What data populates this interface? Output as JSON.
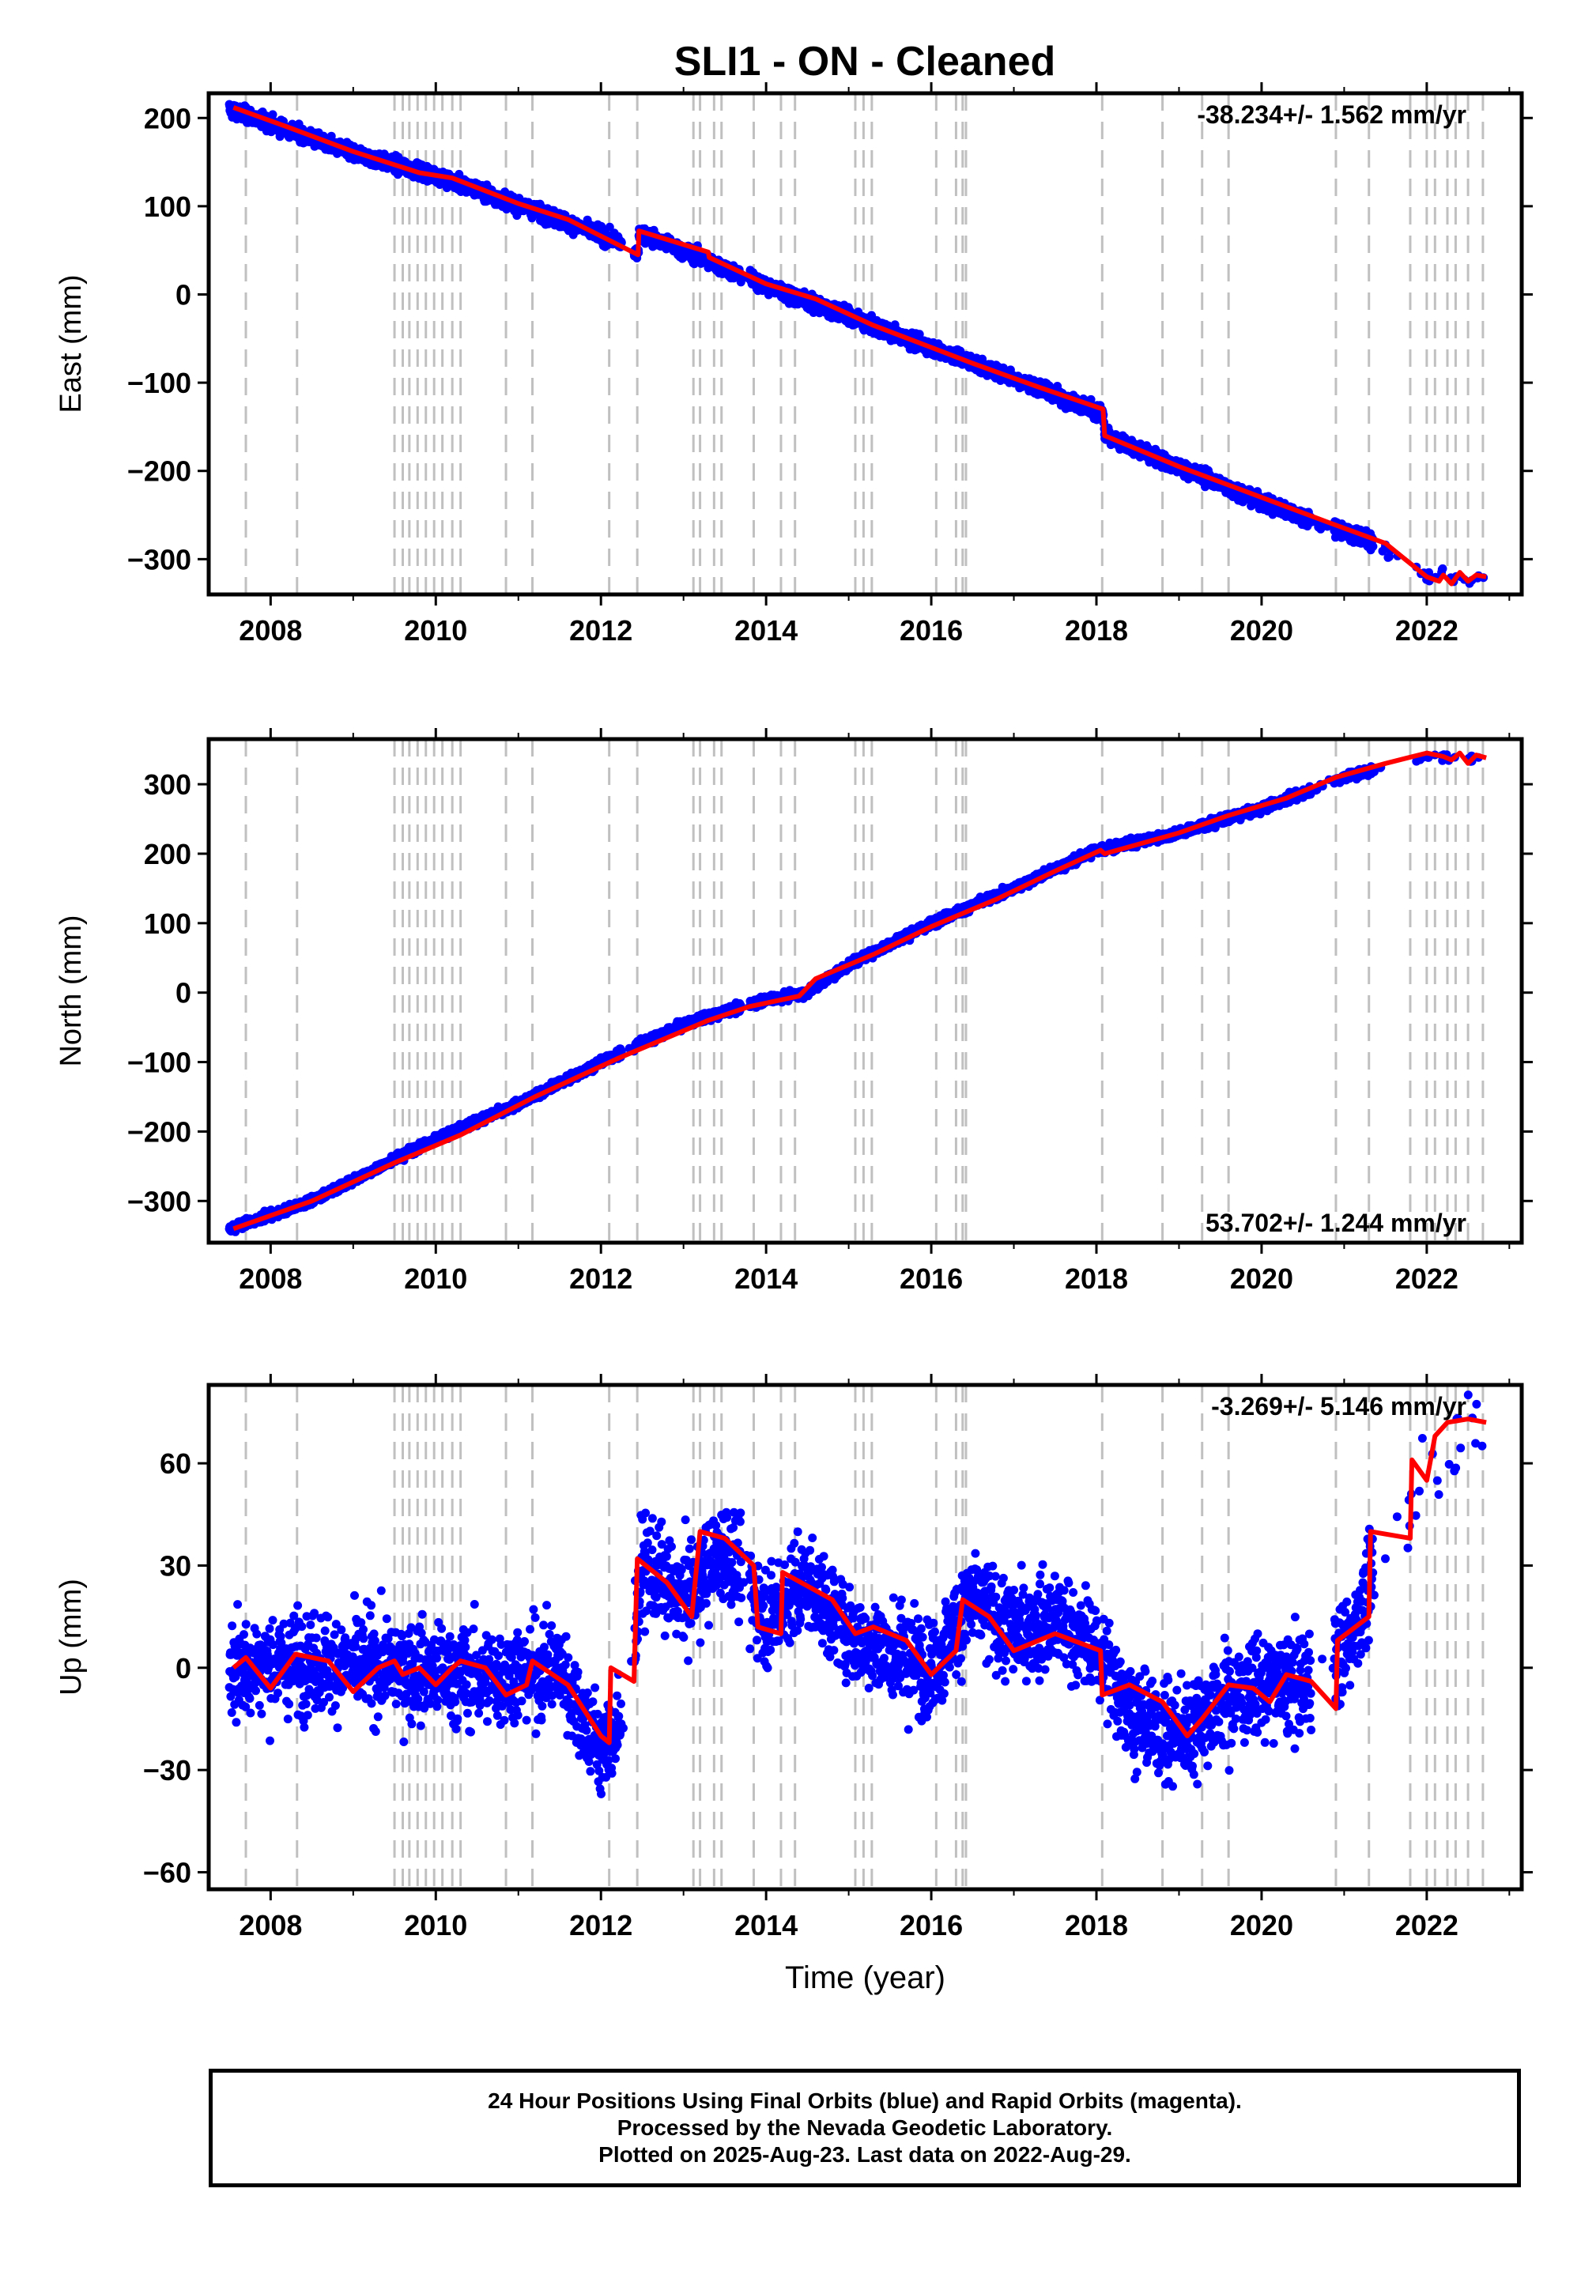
{
  "title": "SLI1  - ON - Cleaned",
  "chart_data": [
    {
      "type": "scatter",
      "panel": "east",
      "ylabel": "East (mm)",
      "xlabel": "",
      "rate_label": "-38.234+/- 1.562 mm/yr",
      "xlim": [
        2007.25,
        2023.15
      ],
      "ylim": [
        -340,
        228
      ],
      "yticks": [
        -300,
        -200,
        -100,
        0,
        100,
        200
      ],
      "ytick_labels": [
        "−300",
        "−200",
        "−100",
        "0",
        "100",
        "200"
      ],
      "xticks": [
        2008,
        2010,
        2012,
        2014,
        2016,
        2018,
        2020,
        2022
      ],
      "xtick_labels": [
        "2008",
        "2010",
        "2012",
        "2014",
        "2016",
        "2018",
        "2020",
        "2022"
      ],
      "series": [
        {
          "name": "",
          "role": "observations",
          "color": "#0000ff",
          "trend": [
            [
              2007.5,
              210
            ],
            [
              2009.0,
              160
            ],
            [
              2010.0,
              135
            ],
            [
              2011.0,
              102
            ],
            [
              2012.2,
              60
            ],
            [
              2012.45,
              45
            ],
            [
              2012.46,
              70
            ],
            [
              2013.5,
              30
            ],
            [
              2014.0,
              10
            ],
            [
              2015.0,
              -25
            ],
            [
              2016.0,
              -60
            ],
            [
              2017.0,
              -95
            ],
            [
              2018.08,
              -135
            ],
            [
              2018.1,
              -160
            ],
            [
              2019.0,
              -195
            ],
            [
              2020.0,
              -235
            ],
            [
              2021.2,
              -275
            ],
            [
              2022.0,
              -318
            ],
            [
              2022.7,
              -320
            ]
          ],
          "scatter_mm": 7
        },
        {
          "name": "",
          "role": "model",
          "color": "#ff0000",
          "points": [
            [
              2007.55,
              212
            ],
            [
              2008.2,
              190
            ],
            [
              2009.0,
              162
            ],
            [
              2009.8,
              138
            ],
            [
              2010.2,
              132
            ],
            [
              2011.0,
              103
            ],
            [
              2011.6,
              85
            ],
            [
              2012.45,
              45
            ],
            [
              2012.46,
              72
            ],
            [
              2013.3,
              48
            ],
            [
              2013.31,
              42
            ],
            [
              2014.0,
              12
            ],
            [
              2014.6,
              -5
            ],
            [
              2015.3,
              -35
            ],
            [
              2016.0,
              -60
            ],
            [
              2016.5,
              -78
            ],
            [
              2017.3,
              -105
            ],
            [
              2018.08,
              -130
            ],
            [
              2018.1,
              -160
            ],
            [
              2019.0,
              -195
            ],
            [
              2020.0,
              -230
            ],
            [
              2020.8,
              -258
            ],
            [
              2021.5,
              -282
            ],
            [
              2022.0,
              -320
            ],
            [
              2022.15,
              -325
            ],
            [
              2022.2,
              -318
            ],
            [
              2022.3,
              -328
            ],
            [
              2022.4,
              -315
            ],
            [
              2022.5,
              -325
            ],
            [
              2022.6,
              -318
            ],
            [
              2022.72,
              -320
            ]
          ]
        }
      ],
      "breaks": [
        2007.7,
        2008.32,
        2009.5,
        2009.6,
        2009.68,
        2009.78,
        2009.88,
        2009.98,
        2010.08,
        2010.2,
        2010.3,
        2010.85,
        2011.17,
        2012.1,
        2012.44,
        2013.12,
        2013.2,
        2013.37,
        2013.46,
        2013.85,
        2014.18,
        2014.35,
        2015.08,
        2015.18,
        2015.28,
        2016.06,
        2016.3,
        2016.38,
        2016.42,
        2018.07,
        2018.8,
        2019.28,
        2019.6,
        2020.9,
        2021.3,
        2021.8,
        2022.0,
        2022.1,
        2022.25,
        2022.35,
        2022.5,
        2022.68
      ]
    },
    {
      "type": "scatter",
      "panel": "north",
      "ylabel": "North (mm)",
      "xlabel": "",
      "rate_label": "53.702+/- 1.244 mm/yr",
      "xlim": [
        2007.25,
        2023.15
      ],
      "ylim": [
        -360,
        365
      ],
      "yticks": [
        -300,
        -200,
        -100,
        0,
        100,
        200,
        300
      ],
      "ytick_labels": [
        "−300",
        "−200",
        "−100",
        "0",
        "100",
        "200",
        "300"
      ],
      "xticks": [
        2008,
        2010,
        2012,
        2014,
        2016,
        2018,
        2020,
        2022
      ],
      "xtick_labels": [
        "2008",
        "2010",
        "2012",
        "2014",
        "2016",
        "2018",
        "2020",
        "2022"
      ],
      "series": [
        {
          "name": "",
          "role": "observations",
          "color": "#0000ff",
          "trend": [
            [
              2007.5,
              -340
            ],
            [
              2008.5,
              -300
            ],
            [
              2010.0,
              -210
            ],
            [
              2011.0,
              -160
            ],
            [
              2012.0,
              -100
            ],
            [
              2013.0,
              -45
            ],
            [
              2014.0,
              -10
            ],
            [
              2014.5,
              0
            ],
            [
              2015.0,
              40
            ],
            [
              2016.0,
              100
            ],
            [
              2017.0,
              150
            ],
            [
              2018.0,
              205
            ],
            [
              2019.0,
              230
            ],
            [
              2020.0,
              265
            ],
            [
              2021.0,
              310
            ],
            [
              2022.0,
              340
            ],
            [
              2022.7,
              338
            ]
          ],
          "scatter_mm": 5
        },
        {
          "name": "",
          "role": "model",
          "color": "#ff0000",
          "points": [
            [
              2007.55,
              -340
            ],
            [
              2008.5,
              -300
            ],
            [
              2009.5,
              -245
            ],
            [
              2010.3,
              -205
            ],
            [
              2011.2,
              -150
            ],
            [
              2012.2,
              -95
            ],
            [
              2013.3,
              -40
            ],
            [
              2013.8,
              -20
            ],
            [
              2014.4,
              -5
            ],
            [
              2014.6,
              20
            ],
            [
              2015.3,
              55
            ],
            [
              2016.0,
              95
            ],
            [
              2016.8,
              135
            ],
            [
              2017.5,
              175
            ],
            [
              2018.05,
              205
            ],
            [
              2018.1,
              200
            ],
            [
              2019.0,
              230
            ],
            [
              2019.6,
              255
            ],
            [
              2020.3,
              280
            ],
            [
              2020.9,
              310
            ],
            [
              2021.5,
              330
            ],
            [
              2022.0,
              345
            ],
            [
              2022.2,
              340
            ],
            [
              2022.3,
              335
            ],
            [
              2022.4,
              345
            ],
            [
              2022.5,
              330
            ],
            [
              2022.6,
              342
            ],
            [
              2022.72,
              338
            ]
          ]
        }
      ],
      "breaks": [
        2007.7,
        2008.32,
        2009.5,
        2009.6,
        2009.68,
        2009.78,
        2009.88,
        2009.98,
        2010.08,
        2010.2,
        2010.3,
        2010.85,
        2011.17,
        2012.1,
        2012.44,
        2013.12,
        2013.2,
        2013.37,
        2013.46,
        2013.85,
        2014.18,
        2014.35,
        2015.08,
        2015.18,
        2015.28,
        2016.06,
        2016.3,
        2016.38,
        2016.42,
        2018.07,
        2018.8,
        2019.28,
        2019.6,
        2020.9,
        2021.3,
        2021.8,
        2022.0,
        2022.1,
        2022.25,
        2022.35,
        2022.5,
        2022.68
      ]
    },
    {
      "type": "scatter",
      "panel": "up",
      "ylabel": "Up (mm)",
      "xlabel": "Time (year)",
      "rate_label": "-3.269+/- 5.146 mm/yr",
      "xlim": [
        2007.25,
        2023.15
      ],
      "ylim": [
        -65,
        83
      ],
      "yticks": [
        -60,
        -30,
        0,
        30,
        60
      ],
      "ytick_labels": [
        "−60",
        "−30",
        "0",
        "30",
        "60"
      ],
      "xticks": [
        2008,
        2010,
        2012,
        2014,
        2016,
        2018,
        2020,
        2022
      ],
      "xtick_labels": [
        "2008",
        "2010",
        "2012",
        "2014",
        "2016",
        "2018",
        "2020",
        "2022"
      ],
      "series": [
        {
          "name": "",
          "role": "observations",
          "color": "#0000ff",
          "trend": [
            [
              2007.5,
              0
            ],
            [
              2008.5,
              2
            ],
            [
              2009.5,
              0
            ],
            [
              2010.5,
              -3
            ],
            [
              2011.5,
              0
            ],
            [
              2012.0,
              -25
            ],
            [
              2012.3,
              -15
            ],
            [
              2012.5,
              30
            ],
            [
              2013.0,
              20
            ],
            [
              2013.5,
              35
            ],
            [
              2014.0,
              15
            ],
            [
              2014.5,
              25
            ],
            [
              2015.0,
              10
            ],
            [
              2016.0,
              0
            ],
            [
              2016.5,
              20
            ],
            [
              2017.0,
              10
            ],
            [
              2017.5,
              15
            ],
            [
              2018.0,
              5
            ],
            [
              2018.5,
              -15
            ],
            [
              2019.0,
              -20
            ],
            [
              2019.5,
              -10
            ],
            [
              2020.0,
              -5
            ],
            [
              2020.5,
              -5
            ],
            [
              2021.0,
              5
            ],
            [
              2021.5,
              35
            ],
            [
              2022.0,
              60
            ],
            [
              2022.7,
              72
            ]
          ],
          "scatter_mm": 12
        },
        {
          "name": "",
          "role": "model",
          "color": "#ff0000",
          "points": [
            [
              2007.55,
              0
            ],
            [
              2007.7,
              3
            ],
            [
              2008.0,
              -6
            ],
            [
              2008.3,
              4
            ],
            [
              2008.7,
              2
            ],
            [
              2009.0,
              -7
            ],
            [
              2009.3,
              0
            ],
            [
              2009.5,
              2
            ],
            [
              2009.6,
              -2
            ],
            [
              2009.8,
              0
            ],
            [
              2010.0,
              -5
            ],
            [
              2010.2,
              0
            ],
            [
              2010.3,
              2
            ],
            [
              2010.6,
              0
            ],
            [
              2010.85,
              -8
            ],
            [
              2011.1,
              -5
            ],
            [
              2011.17,
              2
            ],
            [
              2011.6,
              -5
            ],
            [
              2012.0,
              -20
            ],
            [
              2012.1,
              -22
            ],
            [
              2012.12,
              0
            ],
            [
              2012.4,
              -4
            ],
            [
              2012.44,
              32
            ],
            [
              2012.8,
              25
            ],
            [
              2013.1,
              15
            ],
            [
              2013.2,
              40
            ],
            [
              2013.5,
              38
            ],
            [
              2013.85,
              30
            ],
            [
              2013.9,
              12
            ],
            [
              2014.18,
              10
            ],
            [
              2014.2,
              28
            ],
            [
              2014.35,
              26
            ],
            [
              2014.8,
              20
            ],
            [
              2015.08,
              10
            ],
            [
              2015.3,
              12
            ],
            [
              2015.7,
              8
            ],
            [
              2016.0,
              -2
            ],
            [
              2016.3,
              5
            ],
            [
              2016.38,
              20
            ],
            [
              2016.7,
              15
            ],
            [
              2017.0,
              5
            ],
            [
              2017.5,
              10
            ],
            [
              2018.05,
              5
            ],
            [
              2018.07,
              -8
            ],
            [
              2018.4,
              -5
            ],
            [
              2018.8,
              -10
            ],
            [
              2019.1,
              -20
            ],
            [
              2019.28,
              -15
            ],
            [
              2019.6,
              -5
            ],
            [
              2019.9,
              -6
            ],
            [
              2020.1,
              -10
            ],
            [
              2020.3,
              -2
            ],
            [
              2020.6,
              -4
            ],
            [
              2020.9,
              -12
            ],
            [
              2020.92,
              8
            ],
            [
              2021.3,
              15
            ],
            [
              2021.32,
              40
            ],
            [
              2021.8,
              38
            ],
            [
              2021.82,
              61
            ],
            [
              2022.0,
              55
            ],
            [
              2022.1,
              68
            ],
            [
              2022.25,
              72
            ],
            [
              2022.5,
              73
            ],
            [
              2022.72,
              72
            ]
          ]
        }
      ],
      "breaks": [
        2007.7,
        2008.32,
        2009.5,
        2009.6,
        2009.68,
        2009.78,
        2009.88,
        2009.98,
        2010.08,
        2010.2,
        2010.3,
        2010.85,
        2011.17,
        2012.1,
        2012.44,
        2013.12,
        2013.2,
        2013.37,
        2013.46,
        2013.85,
        2014.18,
        2014.35,
        2015.08,
        2015.18,
        2015.28,
        2016.06,
        2016.3,
        2016.38,
        2016.42,
        2018.07,
        2018.8,
        2019.28,
        2019.6,
        2020.9,
        2021.3,
        2021.8,
        2022.0,
        2022.1,
        2022.25,
        2022.35,
        2022.5,
        2022.68
      ]
    }
  ],
  "footer": {
    "line1": "24 Hour Positions Using Final Orbits (blue) and Rapid Orbits (magenta).",
    "line2": "Processed by the Nevada Geodetic Laboratory.",
    "line3": "Plotted on 2025-Aug-23. Last data on 2022-Aug-29."
  }
}
